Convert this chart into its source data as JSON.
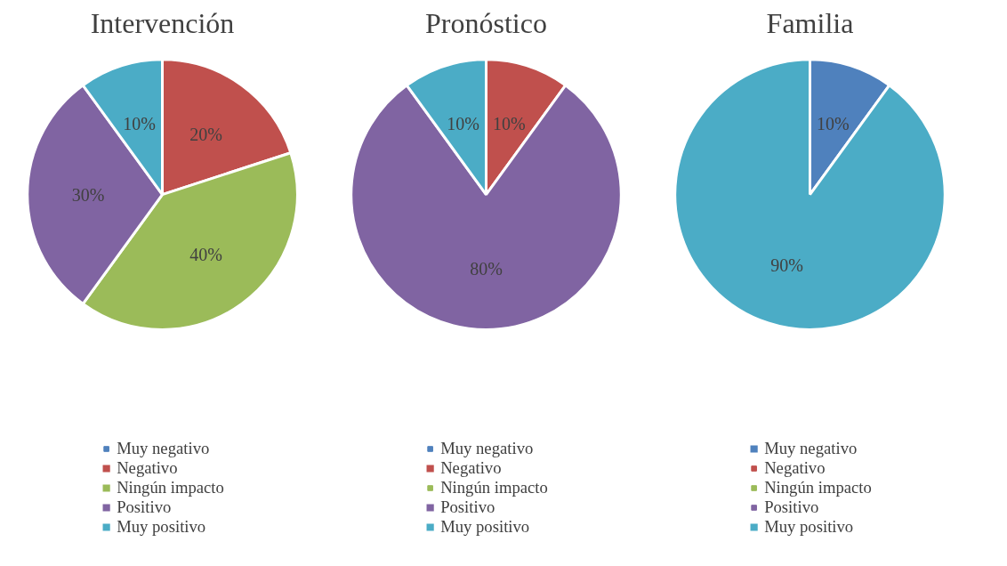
{
  "chart_data": [
    {
      "type": "pie",
      "title": "Intervención",
      "categories": [
        "Muy negativo",
        "Negativo",
        "Ningún impacto",
        "Positivo",
        "Muy positivo"
      ],
      "values": [
        0,
        20,
        40,
        30,
        10
      ],
      "colors": [
        "#4f81bd",
        "#c0504d",
        "#9bbb59",
        "#8064a2",
        "#4bacc6"
      ],
      "value_labels": [
        null,
        "20%",
        "40%",
        "30%",
        "10%"
      ],
      "legend": "bottom"
    },
    {
      "type": "pie",
      "title": "Pronóstico",
      "categories": [
        "Muy negativo",
        "Negativo",
        "Ningún impacto",
        "Positivo",
        "Muy positivo"
      ],
      "values": [
        0,
        10,
        0,
        80,
        10
      ],
      "colors": [
        "#4f81bd",
        "#c0504d",
        "#9bbb59",
        "#8064a2",
        "#4bacc6"
      ],
      "value_labels": [
        null,
        "10%",
        null,
        "80%",
        "10%"
      ],
      "legend": "bottom"
    },
    {
      "type": "pie",
      "title": "Familia",
      "categories": [
        "Muy negativo",
        "Negativo",
        "Ningún impacto",
        "Positivo",
        "Muy positivo"
      ],
      "values": [
        10,
        0,
        0,
        0,
        90
      ],
      "colors": [
        "#4f81bd",
        "#c0504d",
        "#9bbb59",
        "#8064a2",
        "#4bacc6"
      ],
      "value_labels": [
        "10%",
        null,
        null,
        null,
        "90%"
      ],
      "legend": "bottom"
    }
  ]
}
